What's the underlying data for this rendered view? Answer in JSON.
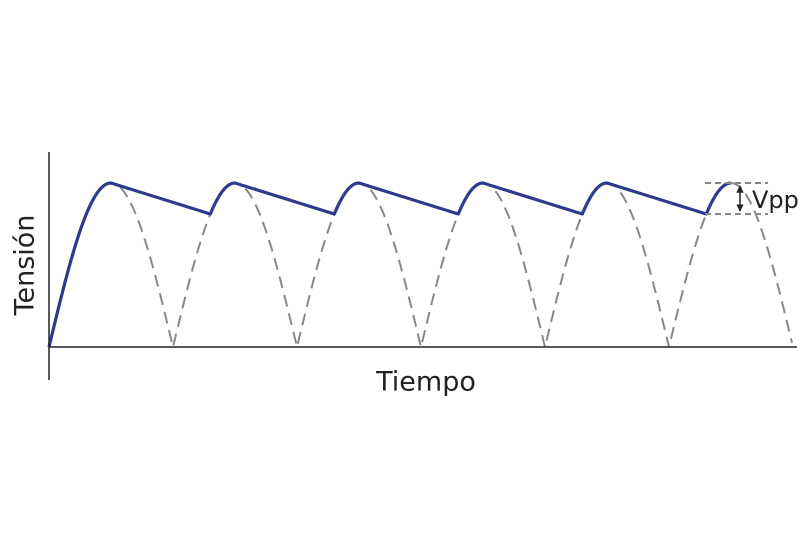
{
  "axes": {
    "y_label": "Tensión",
    "x_label": "Tiempo"
  },
  "annotation": "Vpp"
}
